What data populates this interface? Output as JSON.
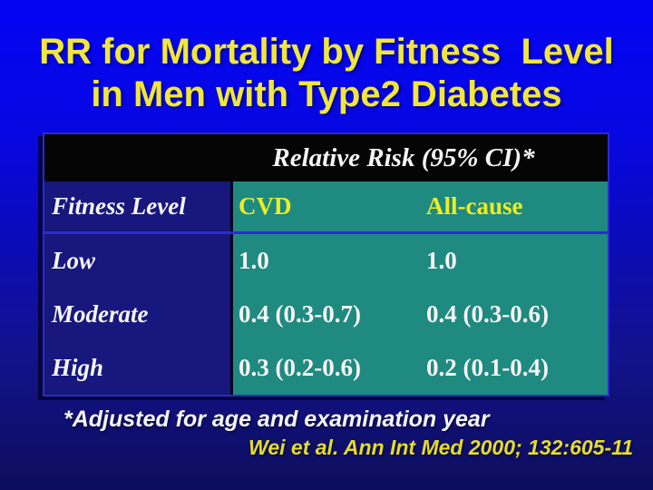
{
  "title": {
    "line1": "RR for Mortality by Fitness  Level",
    "line2": "in Men with Type2 Diabetes"
  },
  "table": {
    "group_header": "Relative Risk (95% CI)*",
    "columns": [
      "Fitness Level",
      "CVD",
      "All-cause"
    ],
    "rows": [
      {
        "level": "Low",
        "cvd": "1.0",
        "all_cause": "1.0"
      },
      {
        "level": "Moderate",
        "cvd": "0.4 (0.3-0.7)",
        "all_cause": "0.4 (0.3-0.6)"
      },
      {
        "level": "High",
        "cvd": "0.3 (0.2-0.6)",
        "all_cause": "0.2 (0.1-0.4)"
      }
    ]
  },
  "footnote": "*Adjusted for age and examination year",
  "citation": "Wei et al. Ann Int Med 2000; 132:605-11",
  "colors": {
    "slide-top": "#0404F4",
    "slide-bottom": "#0D0D5C",
    "title-yellow": "#F0E63C",
    "header-yellow": "#EDED22",
    "citation-yellow": "#E5DC2B",
    "teal": "#1F8A80",
    "navy": "#17177E",
    "header-black": "#050505",
    "line-blue": "#2B2BCC",
    "text-white": "#F5F5F5"
  }
}
